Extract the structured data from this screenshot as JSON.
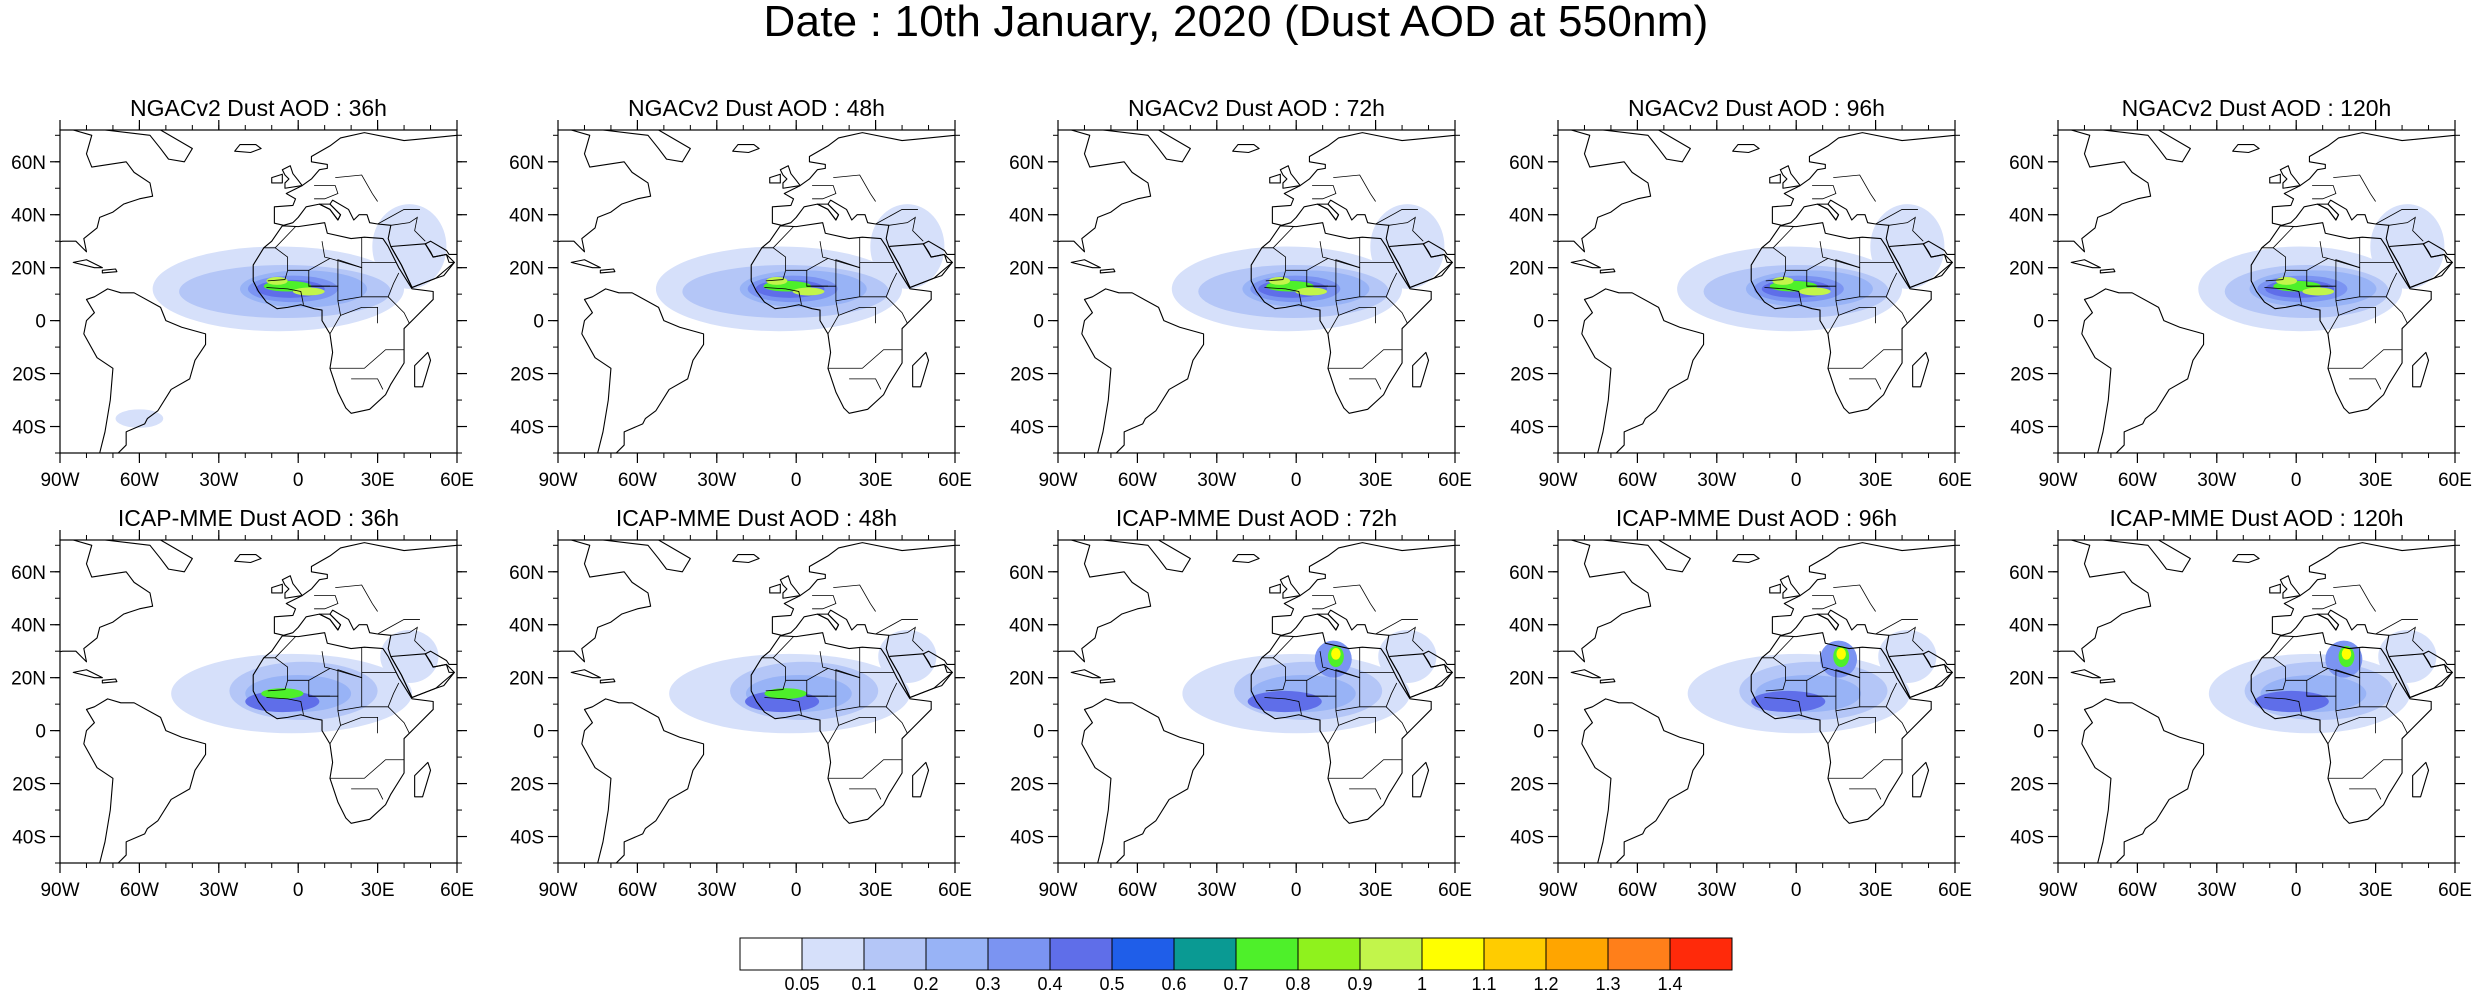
{
  "title": "Date : 10th January, 2020 (Dust AOD at 550nm)",
  "map_extent": {
    "lon": [
      -90,
      60
    ],
    "lat": [
      -50,
      72
    ]
  },
  "lat_ticks": [
    {
      "value": 60,
      "label": "60N"
    },
    {
      "value": 40,
      "label": "40N"
    },
    {
      "value": 20,
      "label": "20N"
    },
    {
      "value": 0,
      "label": "0"
    },
    {
      "value": -20,
      "label": "20S"
    },
    {
      "value": -40,
      "label": "40S"
    }
  ],
  "lon_ticks": [
    {
      "value": -90,
      "label": "90W"
    },
    {
      "value": -60,
      "label": "60W"
    },
    {
      "value": -30,
      "label": "30W"
    },
    {
      "value": 0,
      "label": "0"
    },
    {
      "value": 30,
      "label": "30E"
    },
    {
      "value": 60,
      "label": "60E"
    }
  ],
  "panels": [
    {
      "title": "NGACv2 Dust AOD : 36h",
      "model": "NGACv2",
      "lead": "36h"
    },
    {
      "title": "NGACv2 Dust AOD : 48h",
      "model": "NGACv2",
      "lead": "48h"
    },
    {
      "title": "NGACv2 Dust AOD : 72h",
      "model": "NGACv2",
      "lead": "72h"
    },
    {
      "title": "NGACv2 Dust AOD : 96h",
      "model": "NGACv2",
      "lead": "96h"
    },
    {
      "title": "NGACv2 Dust AOD : 120h",
      "model": "NGACv2",
      "lead": "120h"
    },
    {
      "title": "ICAP-MME Dust AOD : 36h",
      "model": "ICAP-MME",
      "lead": "36h"
    },
    {
      "title": "ICAP-MME Dust AOD : 48h",
      "model": "ICAP-MME",
      "lead": "48h"
    },
    {
      "title": "ICAP-MME Dust AOD : 72h",
      "model": "ICAP-MME",
      "lead": "72h"
    },
    {
      "title": "ICAP-MME Dust AOD : 96h",
      "model": "ICAP-MME",
      "lead": "96h"
    },
    {
      "title": "ICAP-MME Dust AOD : 120h",
      "model": "ICAP-MME",
      "lead": "120h"
    }
  ],
  "colorbar": {
    "colors": [
      "#ffffff",
      "#d6e0fa",
      "#b4c6f7",
      "#98b3f6",
      "#7b94f2",
      "#5f6ee9",
      "#1f5ee9",
      "#0a9a93",
      "#4ef02a",
      "#8ff21d",
      "#c2f54b",
      "#ffff00",
      "#ffcc00",
      "#ffa500",
      "#ff7f1a",
      "#ff2a0a"
    ],
    "labels": [
      "0.05",
      "0.1",
      "0.2",
      "0.3",
      "0.4",
      "0.5",
      "0.6",
      "0.7",
      "0.8",
      "0.9",
      "1",
      "1.1",
      "1.2",
      "1.3",
      "1.4"
    ]
  }
}
